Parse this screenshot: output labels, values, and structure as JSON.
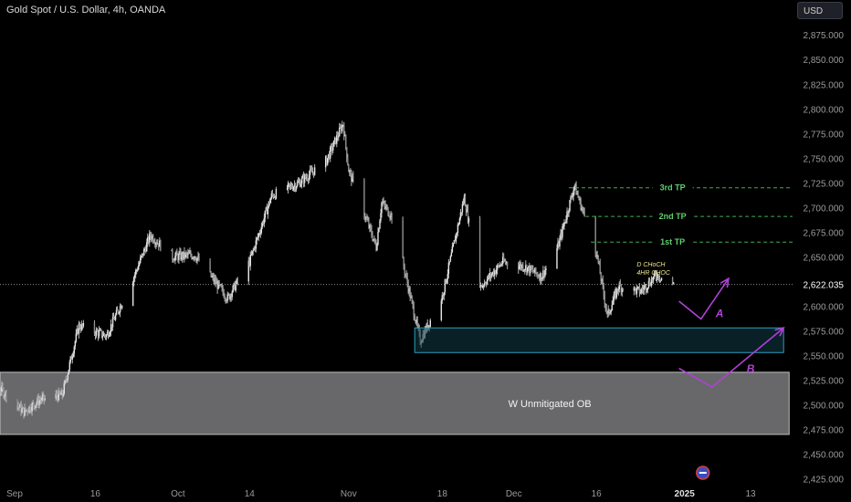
{
  "header": {
    "title": "Gold Spot / U.S. Dollar, 4h, OANDA",
    "currency_button": "USD"
  },
  "colors": {
    "background": "#000000",
    "candle": "#b5b5b5",
    "ob_fill": "#7a7a7d",
    "ob_border": "#bfbfbf",
    "fvg_fill": "#0e3a45",
    "fvg_border": "#2aa0c0",
    "tp_line": "#3fae52",
    "tp_text": "#5fd06e",
    "projection": "#b040d8",
    "annotation_text": "#f0e68c",
    "price_text": "#9a9a9a"
  },
  "chart_data": {
    "type": "candlestick",
    "title": "Gold Spot / U.S. Dollar, 4h, OANDA",
    "ylim": [
      2420,
      2890
    ],
    "y_ticks": [
      "2,425.000",
      "2,450.000",
      "2,475.000",
      "2,500.000",
      "2,525.000",
      "2,550.000",
      "2,575.000",
      "2,600.000",
      "2,625.000",
      "2,650.000",
      "2,675.000",
      "2,700.000",
      "2,725.000",
      "2,750.000",
      "2,775.000",
      "2,800.000",
      "2,825.000",
      "2,850.000",
      "2,875.000"
    ],
    "y_tick_values": [
      2425,
      2450,
      2475,
      2500,
      2525,
      2550,
      2575,
      2600,
      2625,
      2650,
      2675,
      2700,
      2725,
      2750,
      2775,
      2800,
      2825,
      2850,
      2875
    ],
    "x_labels": [
      {
        "label": "Sep",
        "date": "2024-09-01"
      },
      {
        "label": "16",
        "date": "2024-09-16"
      },
      {
        "label": "Oct",
        "date": "2024-10-01"
      },
      {
        "label": "14",
        "date": "2024-10-14"
      },
      {
        "label": "Nov",
        "date": "2024-11-01"
      },
      {
        "label": "18",
        "date": "2024-11-18"
      },
      {
        "label": "Dec",
        "date": "2024-12-01"
      },
      {
        "label": "16",
        "date": "2024-12-16"
      },
      {
        "label": "2025",
        "date": "2025-01-01"
      },
      {
        "label": "13",
        "date": "2025-01-13"
      }
    ],
    "current_price": {
      "value": 2622.035,
      "label": "2,622.035"
    },
    "price_path": [
      {
        "date": "2024-08-24",
        "price": 2512
      },
      {
        "date": "2024-08-29",
        "price": 2520
      },
      {
        "date": "2024-09-03",
        "price": 2493
      },
      {
        "date": "2024-09-06",
        "price": 2505
      },
      {
        "date": "2024-09-10",
        "price": 2510
      },
      {
        "date": "2024-09-13",
        "price": 2580
      },
      {
        "date": "2024-09-18",
        "price": 2570
      },
      {
        "date": "2024-09-23",
        "price": 2630
      },
      {
        "date": "2024-09-26",
        "price": 2672
      },
      {
        "date": "2024-09-30",
        "price": 2650
      },
      {
        "date": "2024-10-04",
        "price": 2652
      },
      {
        "date": "2024-10-10",
        "price": 2608
      },
      {
        "date": "2024-10-14",
        "price": 2645
      },
      {
        "date": "2024-10-18",
        "price": 2712
      },
      {
        "date": "2024-10-23",
        "price": 2725
      },
      {
        "date": "2024-10-28",
        "price": 2748
      },
      {
        "date": "2024-10-31",
        "price": 2785
      },
      {
        "date": "2024-11-01",
        "price": 2738
      },
      {
        "date": "2024-11-06",
        "price": 2660
      },
      {
        "date": "2024-11-07",
        "price": 2705
      },
      {
        "date": "2024-11-09",
        "price": 2690
      },
      {
        "date": "2024-11-14",
        "price": 2565
      },
      {
        "date": "2024-11-18",
        "price": 2610
      },
      {
        "date": "2024-11-22",
        "price": 2710
      },
      {
        "date": "2024-11-25",
        "price": 2620
      },
      {
        "date": "2024-11-29",
        "price": 2645
      },
      {
        "date": "2024-12-03",
        "price": 2640
      },
      {
        "date": "2024-12-06",
        "price": 2630
      },
      {
        "date": "2024-12-09",
        "price": 2660
      },
      {
        "date": "2024-12-12",
        "price": 2722
      },
      {
        "date": "2024-12-16",
        "price": 2655
      },
      {
        "date": "2024-12-18",
        "price": 2590
      },
      {
        "date": "2024-12-20",
        "price": 2620
      },
      {
        "date": "2024-12-24",
        "price": 2615
      },
      {
        "date": "2024-12-27",
        "price": 2632
      },
      {
        "date": "2024-12-30",
        "price": 2622.035
      }
    ],
    "zones": [
      {
        "label": "W Unmitigated OB",
        "price_top": 2533,
        "price_bottom": 2470,
        "start": "2024-08-24",
        "end": "2025-01-20"
      },
      {
        "label": "",
        "price_top": 2578,
        "price_bottom": 2553,
        "start": "2024-11-13",
        "end": "2025-01-19"
      }
    ],
    "tp_levels": [
      {
        "label": "3rd TP",
        "price": 2720,
        "start": "2024-12-11"
      },
      {
        "label": "2nd TP",
        "price": 2691,
        "start": "2024-12-14"
      },
      {
        "label": "1st TP",
        "price": 2665,
        "start": "2024-12-15"
      }
    ],
    "annotations": [
      {
        "text": "D CHoCH",
        "date": "2024-12-23",
        "price": 2640
      },
      {
        "text": "4HR CHOC",
        "date": "2024-12-23",
        "price": 2632
      }
    ],
    "projections": [
      {
        "label": "A",
        "points": [
          {
            "date": "2024-12-31",
            "price": 2605
          },
          {
            "date": "2025-01-04",
            "price": 2587
          },
          {
            "date": "2025-01-09",
            "price": 2628
          }
        ]
      },
      {
        "label": "B",
        "points": [
          {
            "date": "2024-12-31",
            "price": 2537
          },
          {
            "date": "2025-01-06",
            "price": 2518
          },
          {
            "date": "2025-01-19",
            "price": 2578
          }
        ]
      }
    ]
  }
}
